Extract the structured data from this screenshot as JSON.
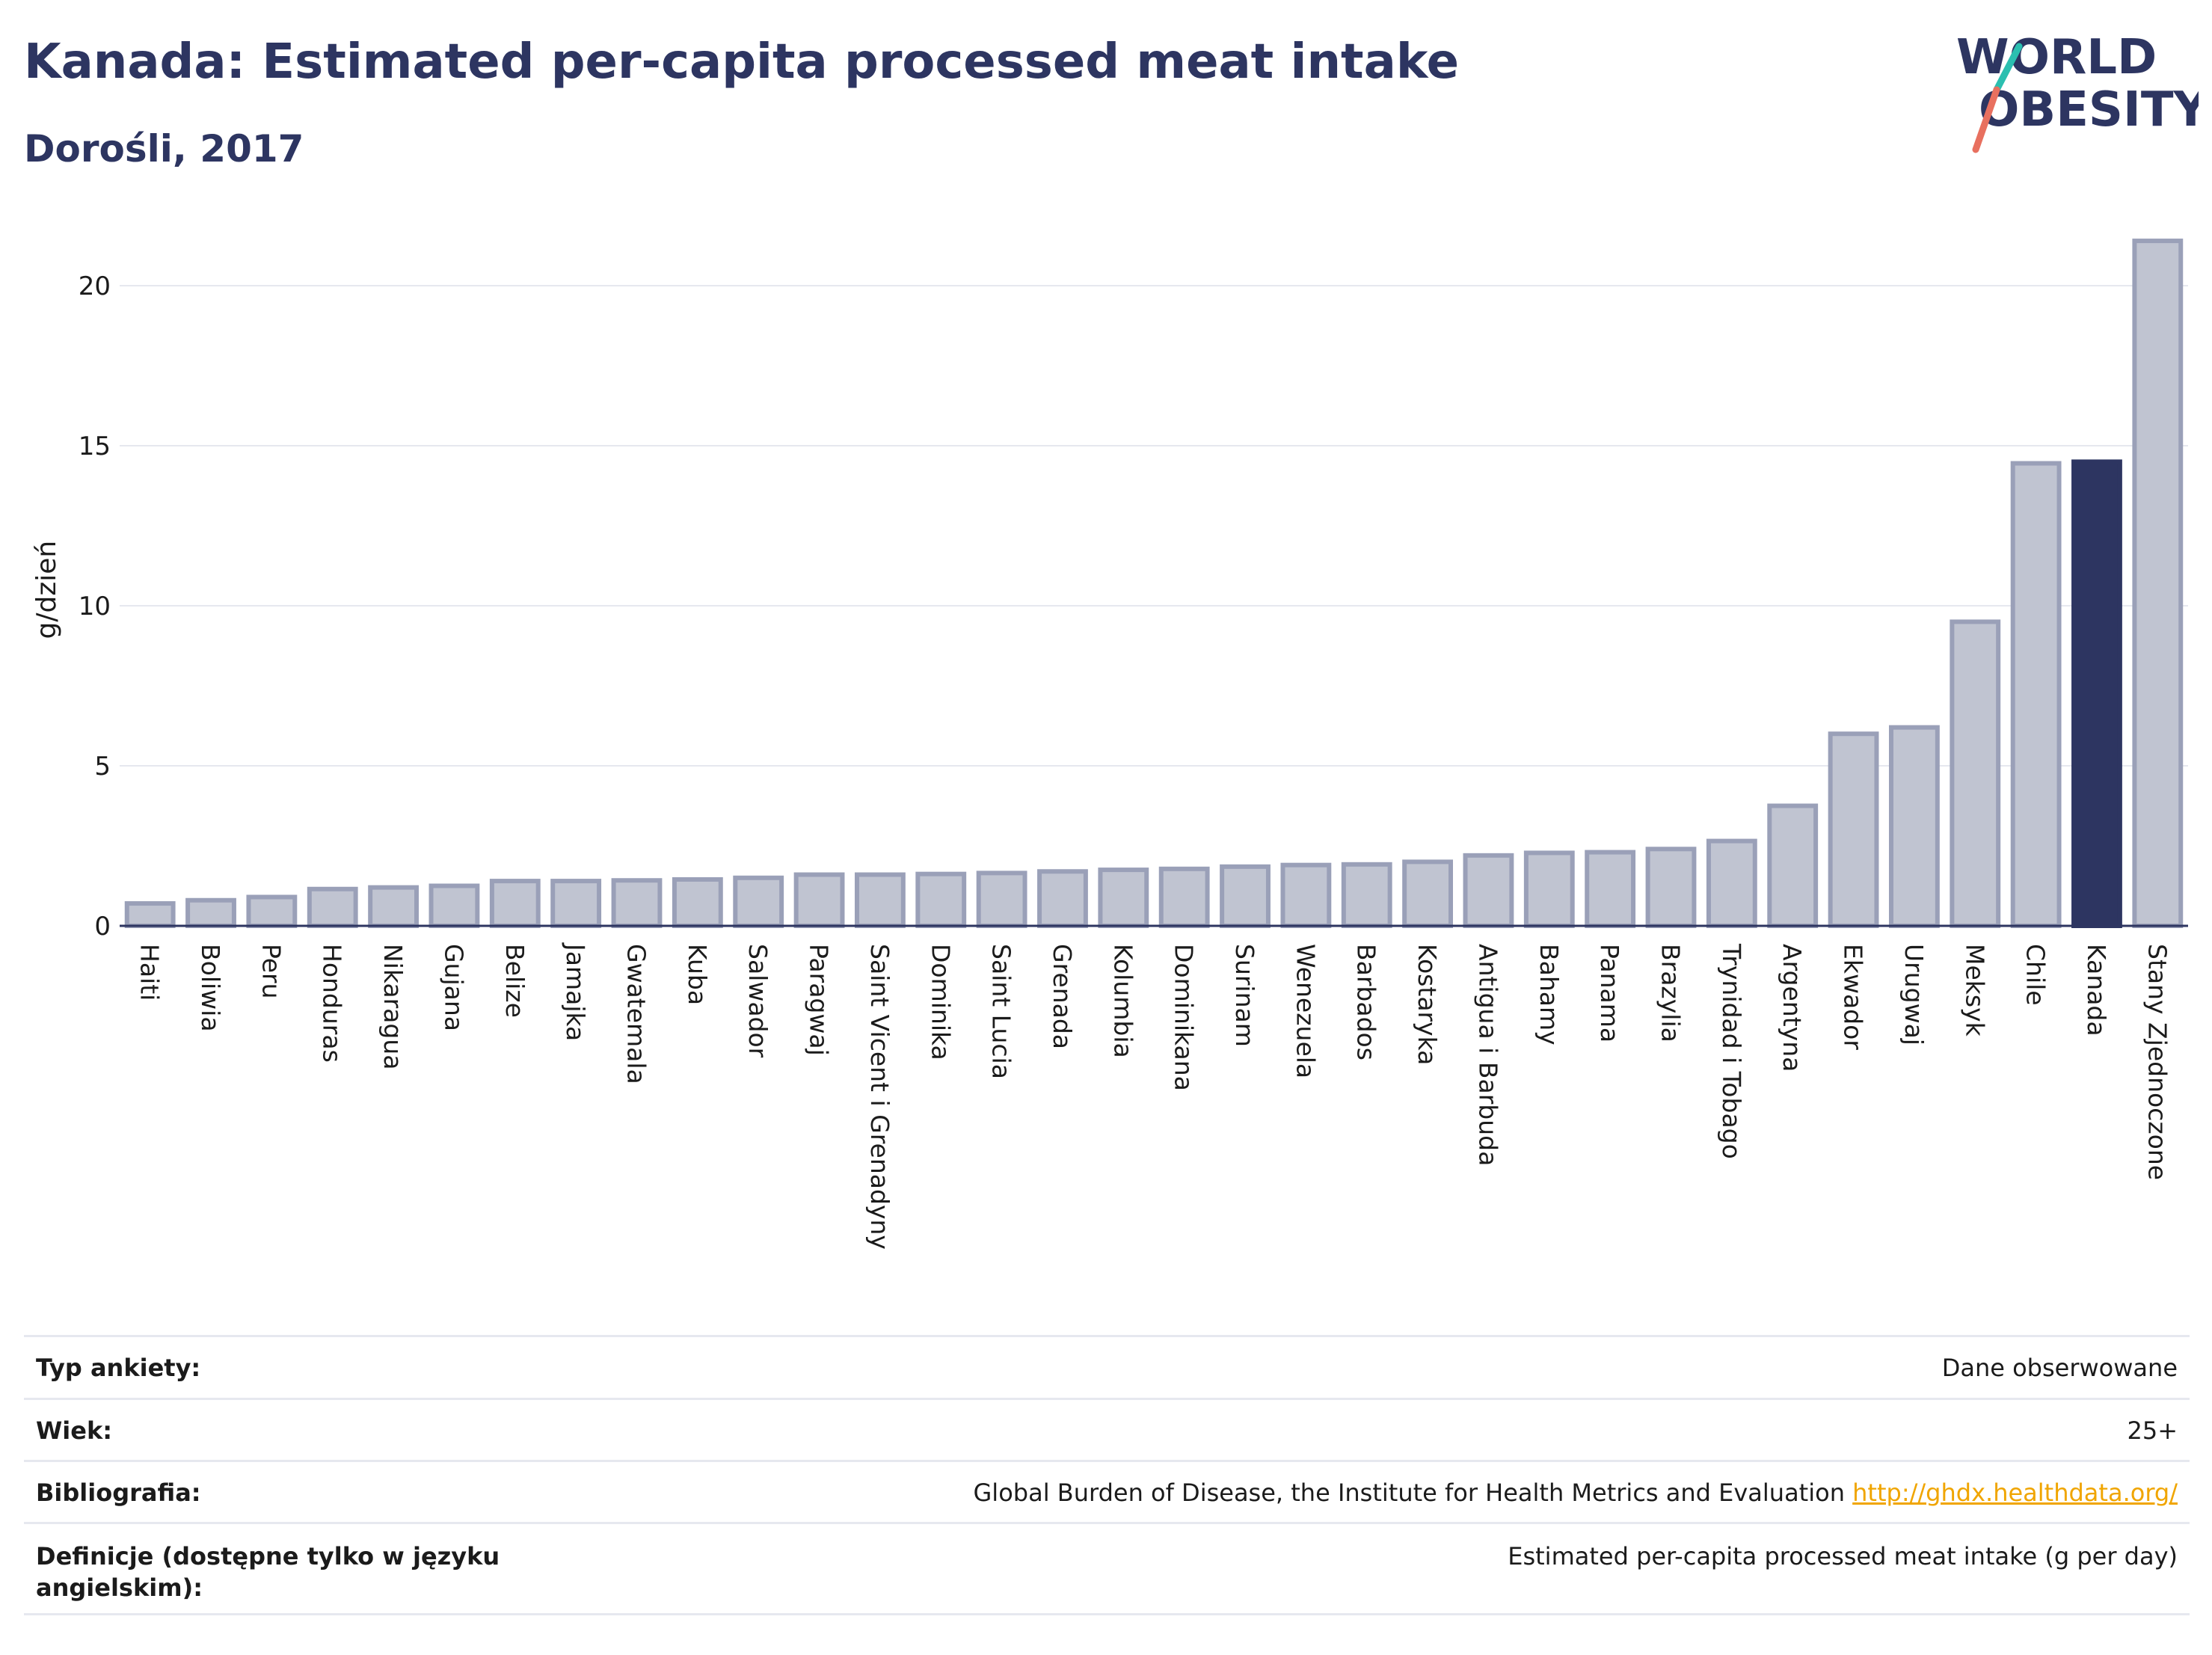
{
  "header": {
    "title": "Kanada: Estimated per-capita processed meat intake",
    "subtitle": "Dorośli, 2017"
  },
  "logo": {
    "line1": "WORLD",
    "line2": "OBESITY",
    "accent_teal": "#2bbfb0",
    "accent_coral": "#e8705f",
    "text_color": "#2d3561"
  },
  "colors": {
    "highlight_bar": "#2d3561",
    "bar_fill": "#c0c4d1",
    "bar_stroke": "#9aa0b8",
    "grid": "#e6e8ef",
    "axis_line": "#2d3561",
    "link": "#f0a500"
  },
  "chart_data": {
    "type": "bar",
    "title": "Kanada: Estimated per-capita processed meat intake",
    "subtitle": "Dorośli, 2017",
    "ylabel": "g/dzień",
    "xlabel": "",
    "ylim": [
      0,
      22
    ],
    "yticks": [
      0,
      5,
      10,
      15,
      20
    ],
    "grid": true,
    "highlight": "Kanada",
    "categories": [
      "Haiti",
      "Boliwia",
      "Peru",
      "Honduras",
      "Nikaragua",
      "Gujana",
      "Belize",
      "Jamajka",
      "Gwatemala",
      "Kuba",
      "Salwador",
      "Paragwaj",
      "Saint Vicent i Grenadyny",
      "Dominika",
      "Saint Lucia",
      "Grenada",
      "Kolumbia",
      "Dominikana",
      "Surinam",
      "Wenezuela",
      "Barbados",
      "Kostaryka",
      "Antigua i Barbuda",
      "Bahamy",
      "Panama",
      "Brazylia",
      "Trynidad i Tobago",
      "Argentyna",
      "Ekwador",
      "Urugwaj",
      "Meksyk",
      "Chile",
      "Kanada",
      "Stany Zjednoczone"
    ],
    "values": [
      0.7,
      0.8,
      0.9,
      1.15,
      1.2,
      1.25,
      1.4,
      1.4,
      1.42,
      1.45,
      1.5,
      1.6,
      1.6,
      1.62,
      1.65,
      1.7,
      1.75,
      1.78,
      1.85,
      1.9,
      1.92,
      2.0,
      2.2,
      2.28,
      2.3,
      2.4,
      2.65,
      3.75,
      6.0,
      6.2,
      9.5,
      14.45,
      14.5,
      21.4
    ]
  },
  "info": {
    "rows": [
      {
        "key": "Typ ankiety:",
        "value": "Dane obserwowane"
      },
      {
        "key": "Wiek:",
        "value": "25+"
      },
      {
        "key": "Bibliografia:",
        "value": "Global Burden of Disease, the Institute for Health Metrics and Evaluation",
        "link": "http://ghdx.healthdata.org/"
      },
      {
        "key": "Definicje (dostępne tylko w języku angielskim):",
        "value": "Estimated per-capita processed meat intake (g per day)"
      }
    ]
  }
}
